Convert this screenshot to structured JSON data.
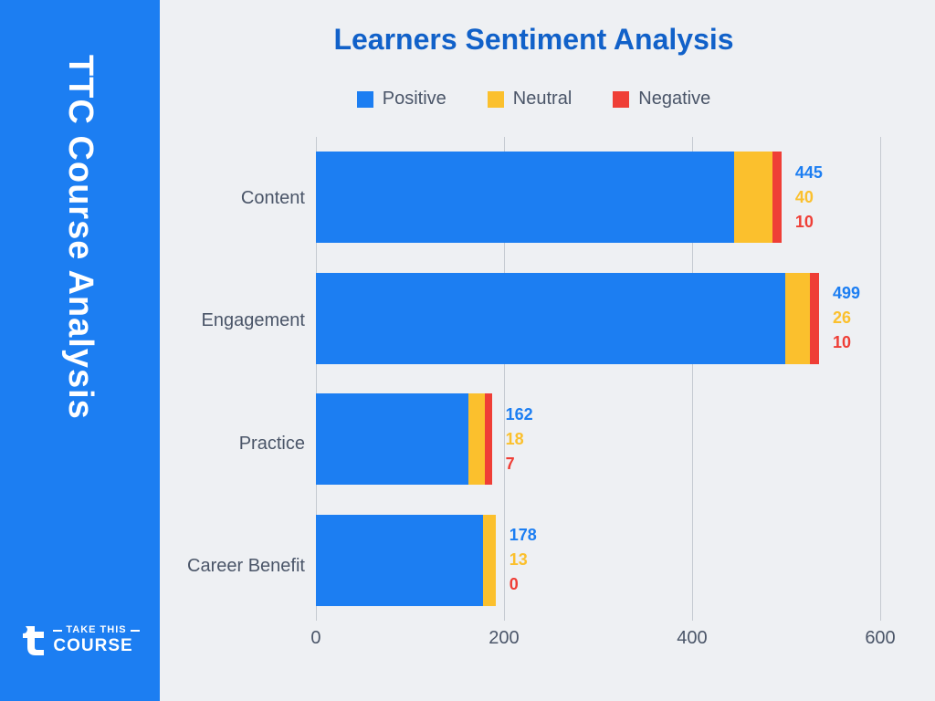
{
  "sidebar": {
    "title": "TTC Course Analysis",
    "logo": {
      "top": "TAKE THIS",
      "bottom": "COURSE"
    },
    "bg_color": "#1c7ef2",
    "text_color": "#ffffff"
  },
  "chart": {
    "type": "stacked-horizontal-bar",
    "title": "Learners Sentiment Analysis",
    "title_color": "#1161c9",
    "background_color": "#eef0f3",
    "grid_color": "#c5cad1",
    "label_color": "#4a5568",
    "label_fontsize": 20,
    "xlim": [
      0,
      600
    ],
    "xtick_step": 200,
    "xticks": [
      "0",
      "200",
      "400",
      "600"
    ],
    "series": [
      {
        "name": "Positive",
        "color": "#1c7ef2"
      },
      {
        "name": "Neutral",
        "color": "#fbc02d"
      },
      {
        "name": "Negative",
        "color": "#ef3e36"
      }
    ],
    "categories": [
      {
        "label": "Content",
        "values": [
          445,
          40,
          10
        ]
      },
      {
        "label": "Engagement",
        "values": [
          499,
          26,
          10
        ]
      },
      {
        "label": "Practice",
        "values": [
          162,
          18,
          7
        ]
      },
      {
        "label": "Career Benefit",
        "values": [
          178,
          13,
          0
        ]
      }
    ]
  }
}
